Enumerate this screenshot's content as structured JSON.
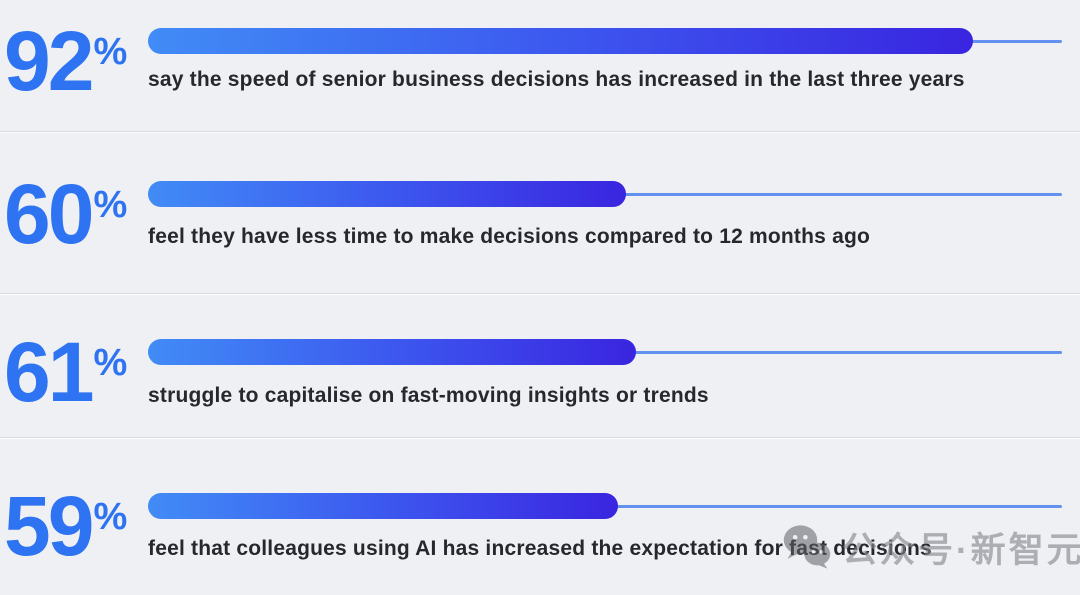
{
  "chart_data": {
    "type": "bar",
    "orientation": "horizontal",
    "title": "",
    "unit": "%",
    "items": [
      {
        "value": "92",
        "label": "say the speed of senior business decisions has increased in the last three years",
        "bar_fill_ratio": 0.903
      },
      {
        "value": "60",
        "label": "feel they have less time to make decisions compared to 12 months ago",
        "bar_fill_ratio": 0.523
      },
      {
        "value": "61",
        "label": "struggle to capitalise on fast-moving insights or trends",
        "bar_fill_ratio": 0.534
      },
      {
        "value": "59",
        "label": "feel that colleagues using AI has increased the expectation for fast decisions",
        "bar_fill_ratio": 0.514
      }
    ],
    "layout": {
      "grid": false,
      "legend": false,
      "track_full_scale": 100
    },
    "colors": {
      "value_text": "#2e73f1",
      "bar_gradient_start": "#418cf6",
      "bar_gradient_end": "#3a25e0",
      "track_line": "#4a80ee",
      "label_text": "#26282e",
      "background": "#eef0f4",
      "divider": "#d8dbe1",
      "watermark_gray": "#84878c"
    }
  },
  "watermark": {
    "icon": "wechat-icon",
    "text": "公众号·新智元"
  }
}
